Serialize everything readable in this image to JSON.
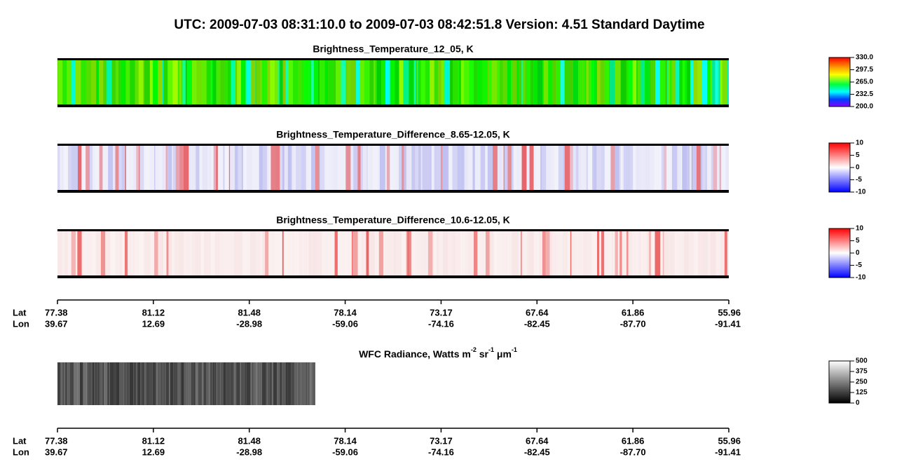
{
  "title": "UTC:  2009-07-03   08:31:10.0  to  2009-07-03   08:42:51.8    Version: 4.51  Standard Daytime",
  "panels": [
    {
      "title": "Brightness_Temperature_12_05, K",
      "colorbar": [
        "330.0",
        "297.5",
        "265.0",
        "232.5",
        "200.0"
      ]
    },
    {
      "title": "Brightness_Temperature_Difference_8.65-12.05, K",
      "colorbar": [
        "10",
        "5",
        "0",
        "-5",
        "-10"
      ]
    },
    {
      "title": "Brightness_Temperature_Difference_10.6-12.05, K",
      "colorbar": [
        "10",
        "5",
        "0",
        "-5",
        "-10"
      ]
    }
  ],
  "axes": [
    {
      "lat_label": "Lat",
      "lon_label": "Lon",
      "lat": [
        "77.38",
        "81.12",
        "81.48",
        "78.14",
        "73.17",
        "67.64",
        "61.86",
        "55.96"
      ],
      "lon": [
        "39.67",
        "12.69",
        "-28.98",
        "-59.06",
        "-74.16",
        "-82.45",
        "-87.70",
        "-91.41"
      ]
    },
    {
      "lat_label": "Lat",
      "lon_label": "Lon",
      "lat": [
        "77.38",
        "81.12",
        "81.48",
        "78.14",
        "73.17",
        "67.64",
        "61.86",
        "55.96"
      ],
      "lon": [
        "39.67",
        "12.69",
        "-28.98",
        "-59.06",
        "-74.16",
        "-82.45",
        "-87.70",
        "-91.41"
      ]
    }
  ],
  "wfc": {
    "title_parts": [
      "WFC Radiance, Watts m",
      "-2",
      " sr",
      "-1",
      " μm",
      "-1"
    ],
    "colorbar": [
      "500",
      "375",
      "250",
      "125",
      "0"
    ]
  }
}
